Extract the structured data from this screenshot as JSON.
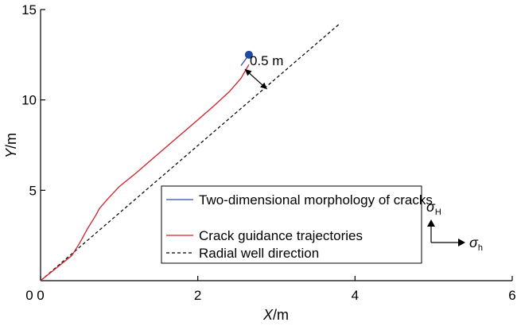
{
  "chart_data": {
    "type": "line",
    "xlabel": {
      "var": "X",
      "unit": "/m"
    },
    "ylabel": {
      "var": "Y",
      "unit": "/m"
    },
    "xlim": [
      0,
      6
    ],
    "ylim": [
      0,
      15
    ],
    "xticks": [
      {
        "v": 0,
        "label": "0"
      },
      {
        "v": 2,
        "label": "2"
      },
      {
        "v": 4,
        "label": "4"
      },
      {
        "v": 6,
        "label": "6"
      }
    ],
    "yticks": [
      {
        "v": 5,
        "label": "5"
      },
      {
        "v": 10,
        "label": "10"
      },
      {
        "v": 15,
        "label": "15"
      }
    ],
    "grid": false,
    "legend_position": "bottom-center",
    "series": [
      {
        "name": "Two-dimensional morphology of cracks",
        "color": "#2f4fa8",
        "dash": "solid",
        "x": [
          2.55,
          2.6,
          2.65
        ],
        "y": [
          11.9,
          12.2,
          12.5
        ]
      },
      {
        "name": "Crack guidance trajectories",
        "color": "#d0202a",
        "dash": "solid",
        "x": [
          0,
          0.1,
          0.2,
          0.3,
          0.4,
          0.5,
          0.6,
          0.7,
          0.75,
          0.85,
          1.0,
          1.2,
          1.4,
          1.6,
          1.8,
          2.0,
          2.2,
          2.4,
          2.55,
          2.65
        ],
        "y": [
          0,
          0.35,
          0.7,
          1.05,
          1.4,
          2.1,
          2.9,
          3.6,
          4.0,
          4.5,
          5.2,
          5.9,
          6.65,
          7.4,
          8.15,
          8.9,
          9.65,
          10.45,
          11.2,
          11.95
        ]
      },
      {
        "name": "Radial well direction",
        "color": "#000000",
        "dash": "dashed",
        "x": [
          0,
          3.8
        ],
        "y": [
          0,
          14.2
        ]
      }
    ],
    "markers": [
      {
        "x": 2.65,
        "y": 12.5,
        "color": "#1f4aa0"
      }
    ],
    "annotations": [
      {
        "text": "0.5 m",
        "from": [
          2.6,
          11.7
        ],
        "to": [
          2.88,
          10.6
        ]
      }
    ],
    "stress_symbols": {
      "symbol": "σ",
      "vertical_sub": "H",
      "horizontal_sub": "h"
    }
  }
}
